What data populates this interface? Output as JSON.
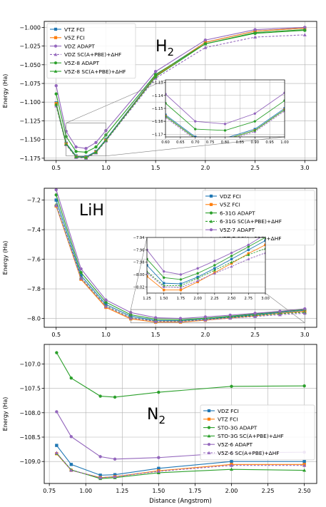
{
  "chart_data": [
    {
      "type": "line",
      "title": "H2",
      "annotation": "H₂",
      "ylabel": "Energy (Ha)",
      "xlim": [
        0.38,
        3.12
      ],
      "ylim": [
        -1.178,
        -0.992
      ],
      "xticks": [
        0.5,
        1.0,
        1.5,
        2.0,
        2.5,
        3.0
      ],
      "xtick_labels": [
        "0.5",
        "1.0",
        "1.5",
        "2.0",
        "2.5",
        "3.0"
      ],
      "yticks": [
        -1.175,
        -1.15,
        -1.125,
        -1.1,
        -1.075,
        -1.05,
        -1.025,
        -1.0
      ],
      "ytick_labels": [
        "−1.175",
        "−1.150",
        "−1.125",
        "−1.100",
        "−1.075",
        "−1.050",
        "−1.025",
        "−1.000"
      ],
      "legend_position": "upper-left",
      "series": [
        {
          "name": "VTZ FCI",
          "color": "#1f77b4",
          "marker": "square",
          "dash": false,
          "x": [
            0.5,
            0.6,
            0.7,
            0.8,
            0.9,
            1.0,
            1.5,
            2.0,
            2.5,
            3.0
          ],
          "values": [
            -1.101,
            -1.155,
            -1.172,
            -1.173,
            -1.166,
            -1.15,
            -1.064,
            -1.02,
            -1.005,
            -1.001
          ]
        },
        {
          "name": "V5Z FCI",
          "color": "#ff7f0e",
          "marker": "square",
          "dash": false,
          "x": [
            0.5,
            0.6,
            0.7,
            0.8,
            0.9,
            1.0,
            1.5,
            2.0,
            2.5,
            3.0
          ],
          "values": [
            -1.102,
            -1.156,
            -1.173,
            -1.174,
            -1.167,
            -1.151,
            -1.065,
            -1.02,
            -1.005,
            -1.001
          ]
        },
        {
          "name": "VDZ ADAPT",
          "color": "#9467bd",
          "marker": "circle",
          "dash": false,
          "x": [
            0.5,
            0.6,
            0.7,
            0.8,
            0.9,
            1.0,
            1.5,
            2.0,
            2.5,
            3.0
          ],
          "values": [
            -1.078,
            -1.139,
            -1.16,
            -1.162,
            -1.154,
            -1.138,
            -1.059,
            -1.017,
            -1.003,
            -1.0
          ]
        },
        {
          "name": "VDZ SC(A+PBE)+ΔHF",
          "color": "#9467bd",
          "marker": "triangle",
          "dash": true,
          "x": [
            0.5,
            0.6,
            0.7,
            0.8,
            0.9,
            1.0,
            1.5,
            2.0,
            2.5,
            3.0
          ],
          "values": [
            -1.105,
            -1.157,
            -1.174,
            -1.175,
            -1.168,
            -1.152,
            -1.068,
            -1.027,
            -1.013,
            -1.01
          ]
        },
        {
          "name": "V5Z-8 ADAPT",
          "color": "#2ca02c",
          "marker": "circle",
          "dash": false,
          "x": [
            0.5,
            0.6,
            0.7,
            0.8,
            0.9,
            1.0,
            1.5,
            2.0,
            2.5,
            3.0
          ],
          "values": [
            -1.089,
            -1.146,
            -1.166,
            -1.167,
            -1.16,
            -1.144,
            -1.063,
            -1.022,
            -1.008,
            -1.004
          ]
        },
        {
          "name": "V5Z-8 SC(A+PBE)+ΔHF",
          "color": "#2ca02c",
          "marker": "triangle",
          "dash": false,
          "x": [
            0.5,
            0.6,
            0.7,
            0.8,
            0.9,
            1.0,
            1.5,
            2.0,
            2.5,
            3.0
          ],
          "values": [
            -1.103,
            -1.156,
            -1.173,
            -1.174,
            -1.167,
            -1.151,
            -1.066,
            -1.022,
            -1.007,
            -1.003
          ]
        }
      ],
      "inset": {
        "xlim": [
          0.6,
          1.0
        ],
        "ylim": [
          -1.172,
          -1.128
        ],
        "xticks": [
          0.6,
          0.65,
          0.7,
          0.75,
          0.8,
          0.85,
          0.9,
          0.95,
          1.0
        ],
        "xtick_labels": [
          "0.60",
          "0.65",
          "0.70",
          "0.75",
          "0.80",
          "0.85",
          "0.90",
          "0.95",
          "1.00"
        ],
        "yticks": [
          -1.17,
          -1.16,
          -1.15,
          -1.14,
          -1.13
        ],
        "ytick_labels": [
          "−1.17",
          "−1.16",
          "−1.15",
          "−1.14",
          "−1.13"
        ]
      }
    },
    {
      "type": "line",
      "title": "LiH",
      "annotation": "LiH",
      "ylabel": "Energy (Ha)",
      "xlim": [
        0.38,
        3.12
      ],
      "ylim": [
        -8.06,
        -7.12
      ],
      "xticks": [
        0.5,
        1.0,
        1.5,
        2.0,
        2.5,
        3.0
      ],
      "xtick_labels": [
        "0.5",
        "1.0",
        "1.5",
        "2.0",
        "2.5",
        "3.0"
      ],
      "yticks": [
        -8.0,
        -7.8,
        -7.6,
        -7.4,
        -7.2
      ],
      "ytick_labels": [
        "−8.0",
        "−7.8",
        "−7.6",
        "−7.4",
        "−7.2"
      ],
      "legend_position": "upper-right",
      "series": [
        {
          "name": "VDZ FCI",
          "color": "#1f77b4",
          "marker": "square",
          "dash": false,
          "x": [
            0.5,
            0.75,
            1.0,
            1.25,
            1.5,
            1.75,
            2.0,
            2.25,
            2.5,
            2.75,
            3.0
          ],
          "values": [
            -7.2,
            -7.71,
            -7.905,
            -7.985,
            -8.014,
            -8.015,
            -8.004,
            -7.99,
            -7.975,
            -7.96,
            -7.945
          ]
        },
        {
          "name": "V5Z FCI",
          "color": "#ff7f0e",
          "marker": "square",
          "dash": false,
          "x": [
            0.5,
            0.75,
            1.0,
            1.25,
            1.5,
            1.75,
            2.0,
            2.25,
            2.5,
            2.75,
            3.0
          ],
          "values": [
            -7.24,
            -7.735,
            -7.925,
            -8.003,
            -8.025,
            -8.025,
            -8.012,
            -7.997,
            -7.982,
            -7.966,
            -7.952
          ]
        },
        {
          "name": "6-31G ADAPT",
          "color": "#2ca02c",
          "marker": "circle",
          "dash": false,
          "x": [
            0.5,
            0.75,
            1.0,
            1.25,
            1.5,
            1.75,
            2.0,
            2.25,
            2.5,
            2.75,
            3.0
          ],
          "values": [
            -7.165,
            -7.69,
            -7.89,
            -7.975,
            -8.005,
            -8.008,
            -7.998,
            -7.985,
            -7.97,
            -7.955,
            -7.94
          ]
        },
        {
          "name": "6-31G SC(A+PBE)+ΔHF",
          "color": "#2ca02c",
          "marker": "triangle",
          "dash": true,
          "x": [
            0.5,
            0.75,
            1.0,
            1.25,
            1.5,
            1.75,
            2.0,
            2.25,
            2.5,
            2.75,
            3.0
          ],
          "values": [
            -7.23,
            -7.725,
            -7.915,
            -7.995,
            -8.018,
            -8.018,
            -8.006,
            -7.993,
            -7.98,
            -7.968,
            -7.958
          ]
        },
        {
          "name": "V5Z-7 ADAPT",
          "color": "#9467bd",
          "marker": "circle",
          "dash": false,
          "x": [
            0.5,
            0.75,
            1.0,
            1.25,
            1.5,
            1.75,
            2.0,
            2.25,
            2.5,
            2.75,
            3.0
          ],
          "values": [
            -7.13,
            -7.665,
            -7.875,
            -7.96,
            -7.995,
            -8.0,
            -7.99,
            -7.978,
            -7.965,
            -7.952,
            -7.935
          ]
        },
        {
          "name": "V5Z-7 SC(A+PBE)+ΔHF",
          "color": "#9467bd",
          "marker": "triangle",
          "dash": true,
          "x": [
            0.5,
            0.75,
            1.0,
            1.25,
            1.5,
            1.75,
            2.0,
            2.25,
            2.5,
            2.75,
            3.0
          ],
          "values": [
            -7.235,
            -7.728,
            -7.918,
            -7.997,
            -8.02,
            -8.021,
            -8.01,
            -7.998,
            -7.987,
            -7.975,
            -7.965
          ]
        }
      ],
      "inset": {
        "xlim": [
          1.25,
          3.0
        ],
        "ylim": [
          -8.03,
          -7.94
        ],
        "xticks": [
          1.25,
          1.5,
          1.75,
          2.0,
          2.25,
          2.5,
          2.75,
          3.0
        ],
        "xtick_labels": [
          "1.25",
          "1.50",
          "1.75",
          "2.00",
          "2.25",
          "2.50",
          "2.75",
          "3.00"
        ],
        "yticks": [
          -8.02,
          -8.0,
          -7.98,
          -7.96,
          -7.94
        ],
        "ytick_labels": [
          "−8.02",
          "−8.00",
          "−7.98",
          "−7.96",
          "−7.94"
        ]
      }
    },
    {
      "type": "line",
      "title": "N2",
      "annotation": "N₂",
      "ylabel": "Energy (Ha)",
      "xlabel": "Distance (Angstrom)",
      "xlim": [
        0.715,
        2.585
      ],
      "ylim": [
        -109.45,
        -106.6
      ],
      "xticks": [
        0.75,
        1.0,
        1.25,
        1.5,
        1.75,
        2.0,
        2.25,
        2.5
      ],
      "xtick_labels": [
        "0.75",
        "1.00",
        "1.25",
        "1.50",
        "1.75",
        "2.00",
        "2.25",
        "2.50"
      ],
      "yticks": [
        -109.0,
        -108.5,
        -108.0,
        -107.5,
        -107.0
      ],
      "ytick_labels": [
        "−109.0",
        "−108.5",
        "−108.0",
        "−107.5",
        "−107.0"
      ],
      "legend_position": "right",
      "series": [
        {
          "name": "VDZ FCI",
          "color": "#1f77b4",
          "marker": "square",
          "dash": false,
          "x": [
            0.8,
            0.9,
            1.1,
            1.2,
            1.5,
            2.0,
            2.5
          ],
          "values": [
            -108.67,
            -109.06,
            -109.28,
            -109.27,
            -109.14,
            -109.0,
            -109.0
          ]
        },
        {
          "name": "VTZ FCI",
          "color": "#ff7f0e",
          "marker": "square",
          "dash": false,
          "x": [
            0.8,
            0.9,
            1.1,
            1.2,
            1.5,
            2.0,
            2.5
          ],
          "values": [
            -108.84,
            -109.18,
            -109.33,
            -109.31,
            -109.19,
            -109.06,
            -109.06
          ]
        },
        {
          "name": "STO-3G ADAPT",
          "color": "#2ca02c",
          "marker": "circle",
          "dash": false,
          "x": [
            0.8,
            0.9,
            1.1,
            1.2,
            1.5,
            2.0,
            2.5
          ],
          "values": [
            -106.77,
            -107.29,
            -107.66,
            -107.68,
            -107.58,
            -107.46,
            -107.45
          ]
        },
        {
          "name": "STO-3G SC(A+PBE)+ΔHF",
          "color": "#2ca02c",
          "marker": "triangle",
          "dash": false,
          "x": [
            0.8,
            0.9,
            1.1,
            1.2,
            1.5,
            2.0,
            2.5
          ],
          "values": [
            -108.83,
            -109.17,
            -109.35,
            -109.33,
            -109.23,
            -109.16,
            -109.18
          ]
        },
        {
          "name": "V5Z-6 ADAPT",
          "color": "#9467bd",
          "marker": "circle",
          "dash": false,
          "x": [
            0.8,
            0.9,
            1.1,
            1.2,
            1.5,
            2.0,
            2.5
          ],
          "values": [
            -107.98,
            -108.49,
            -108.9,
            -108.95,
            -108.92,
            -108.82,
            -108.81
          ]
        },
        {
          "name": "V5Z-6 SC(A+PBE)+ΔHF",
          "color": "#9467bd",
          "marker": "triangle",
          "dash": true,
          "x": [
            0.8,
            0.9,
            1.1,
            1.2,
            1.5,
            2.0,
            2.5
          ],
          "values": [
            -108.82,
            -109.18,
            -109.33,
            -109.31,
            -109.2,
            -109.08,
            -109.08
          ]
        }
      ]
    }
  ]
}
